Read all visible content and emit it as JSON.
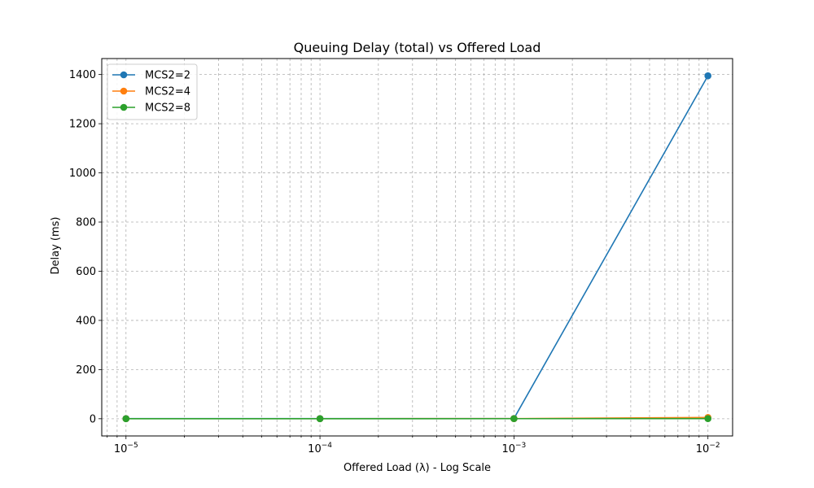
{
  "chart_data": {
    "type": "line",
    "title": "Queuing Delay (total) vs Offered Load",
    "xlabel": "Offered Load (λ) - Log Scale",
    "ylabel": "Delay (ms)",
    "x_scale": "log",
    "x": [
      1e-05,
      0.0001,
      0.001,
      0.01
    ],
    "xlim": [
      7.5e-06,
      0.0134
    ],
    "ylim": [
      -70,
      1465
    ],
    "x_ticks": [
      {
        "value": 1e-05,
        "base": "10",
        "exp": "−5"
      },
      {
        "value": 0.0001,
        "base": "10",
        "exp": "−4"
      },
      {
        "value": 0.001,
        "base": "10",
        "exp": "−3"
      },
      {
        "value": 0.01,
        "base": "10",
        "exp": "−2"
      }
    ],
    "y_ticks": [
      0,
      200,
      400,
      600,
      800,
      1000,
      1200,
      1400
    ],
    "grid": true,
    "grid_minor": true,
    "legend_position": "top-left",
    "series": [
      {
        "name": "MCS2=2",
        "color": "#1f77b4",
        "values": [
          0.5,
          0.5,
          1.0,
          1395
        ]
      },
      {
        "name": "MCS2=4",
        "color": "#ff7f0e",
        "values": [
          0.3,
          0.3,
          0.5,
          5
        ]
      },
      {
        "name": "MCS2=8",
        "color": "#2ca02c",
        "values": [
          0.2,
          0.2,
          0.3,
          0.5
        ]
      }
    ]
  }
}
